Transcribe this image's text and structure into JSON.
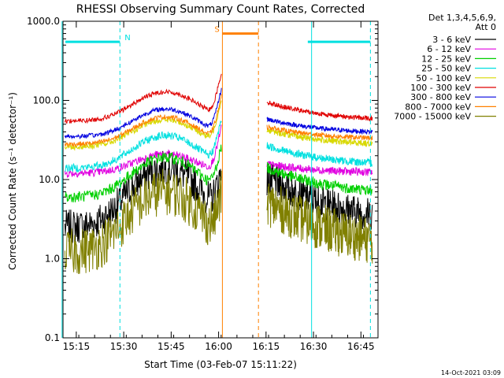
{
  "chart_data": {
    "type": "line",
    "title": "RHESSI Observing Summary Count Rates, Corrected",
    "xlabel": "Start Time (03-Feb-07 15:11:22)",
    "ylabel": "Corrected Count Rate (s⁻¹ detector⁻¹)",
    "yscale": "log",
    "ylim": [
      0.1,
      1000.0
    ],
    "xlim": [
      15.18,
      16.84
    ],
    "yticks": [
      {
        "v": 1000.0,
        "label": "1000.0"
      },
      {
        "v": 100.0,
        "label": "100.0"
      },
      {
        "v": 10.0,
        "label": "10.0"
      },
      {
        "v": 1.0,
        "label": "1.0"
      },
      {
        "v": 0.1,
        "label": "0.1"
      }
    ],
    "xticks": [
      {
        "v": 15.25,
        "label": "15:15"
      },
      {
        "v": 15.5,
        "label": "15:30"
      },
      {
        "v": 15.75,
        "label": "15:45"
      },
      {
        "v": 16.0,
        "label": "16:00"
      },
      {
        "v": 16.25,
        "label": "16:15"
      },
      {
        "v": 16.5,
        "label": "16:30"
      },
      {
        "v": 16.75,
        "label": "16:45"
      }
    ],
    "legend": {
      "position": "top-right",
      "header": [
        "Det 1,3,4,5,6,9,",
        "Att 0"
      ]
    },
    "series": [
      {
        "name": "3 - 6 keV",
        "color": "#000000",
        "edge": 2.5,
        "peak": 14,
        "tail": 2.8,
        "noise": 0.22
      },
      {
        "name": "6 - 12 keV",
        "color": "#e000e0",
        "edge": 12,
        "peak": 21,
        "tail": 12,
        "noise": 0.05
      },
      {
        "name": "12 - 25 keV",
        "color": "#00d000",
        "edge": 6,
        "peak": 19,
        "tail": 6.5,
        "noise": 0.07
      },
      {
        "name": "25 - 50 keV",
        "color": "#00e0e0",
        "edge": 14,
        "peak": 36,
        "tail": 15,
        "noise": 0.05
      },
      {
        "name": "50 - 100 keV",
        "color": "#d8d800",
        "edge": 26,
        "peak": 57,
        "tail": 27,
        "noise": 0.04
      },
      {
        "name": "100 - 300 keV",
        "color": "#e00000",
        "edge": 55,
        "peak": 128,
        "tail": 55,
        "noise": 0.03
      },
      {
        "name": "300 - 800 keV",
        "color": "#0000e0",
        "edge": 35,
        "peak": 78,
        "tail": 38,
        "noise": 0.03
      },
      {
        "name": "800 - 7000 keV",
        "color": "#ff8000",
        "edge": 28,
        "peak": 62,
        "tail": 32,
        "noise": 0.03
      },
      {
        "name": "7000 - 15000 keV",
        "color": "#808000",
        "edge": 1.2,
        "peak": 7,
        "tail": 1.3,
        "noise": 0.3
      }
    ],
    "annotations": [
      {
        "label": "N",
        "color": "#00e0e0",
        "x_start": 15.18,
        "x_end": 15.48,
        "level": 550
      },
      {
        "label": "S",
        "color": "#ff8000",
        "x_start": 16.02,
        "x_end": 16.21,
        "level": 700
      },
      {
        "label": "",
        "color": "#00e0e0",
        "x_start": 16.47,
        "x_end": 16.8,
        "level": 550
      }
    ],
    "vertical_markers": [
      {
        "x": 15.175,
        "color": "#00e0e0",
        "style": "solid"
      },
      {
        "x": 15.48,
        "color": "#00e0e0",
        "style": "dashed"
      },
      {
        "x": 16.02,
        "color": "#ff8000",
        "style": "solid"
      },
      {
        "x": 16.21,
        "color": "#ff8000",
        "style": "dashed"
      },
      {
        "x": 16.49,
        "color": "#00e0e0",
        "style": "solid"
      },
      {
        "x": 16.8,
        "color": "#00e0e0",
        "style": "dashed"
      }
    ],
    "gaps": [
      [
        16.02,
        16.25
      ]
    ],
    "footer": "14-Oct-2021 03:09"
  }
}
